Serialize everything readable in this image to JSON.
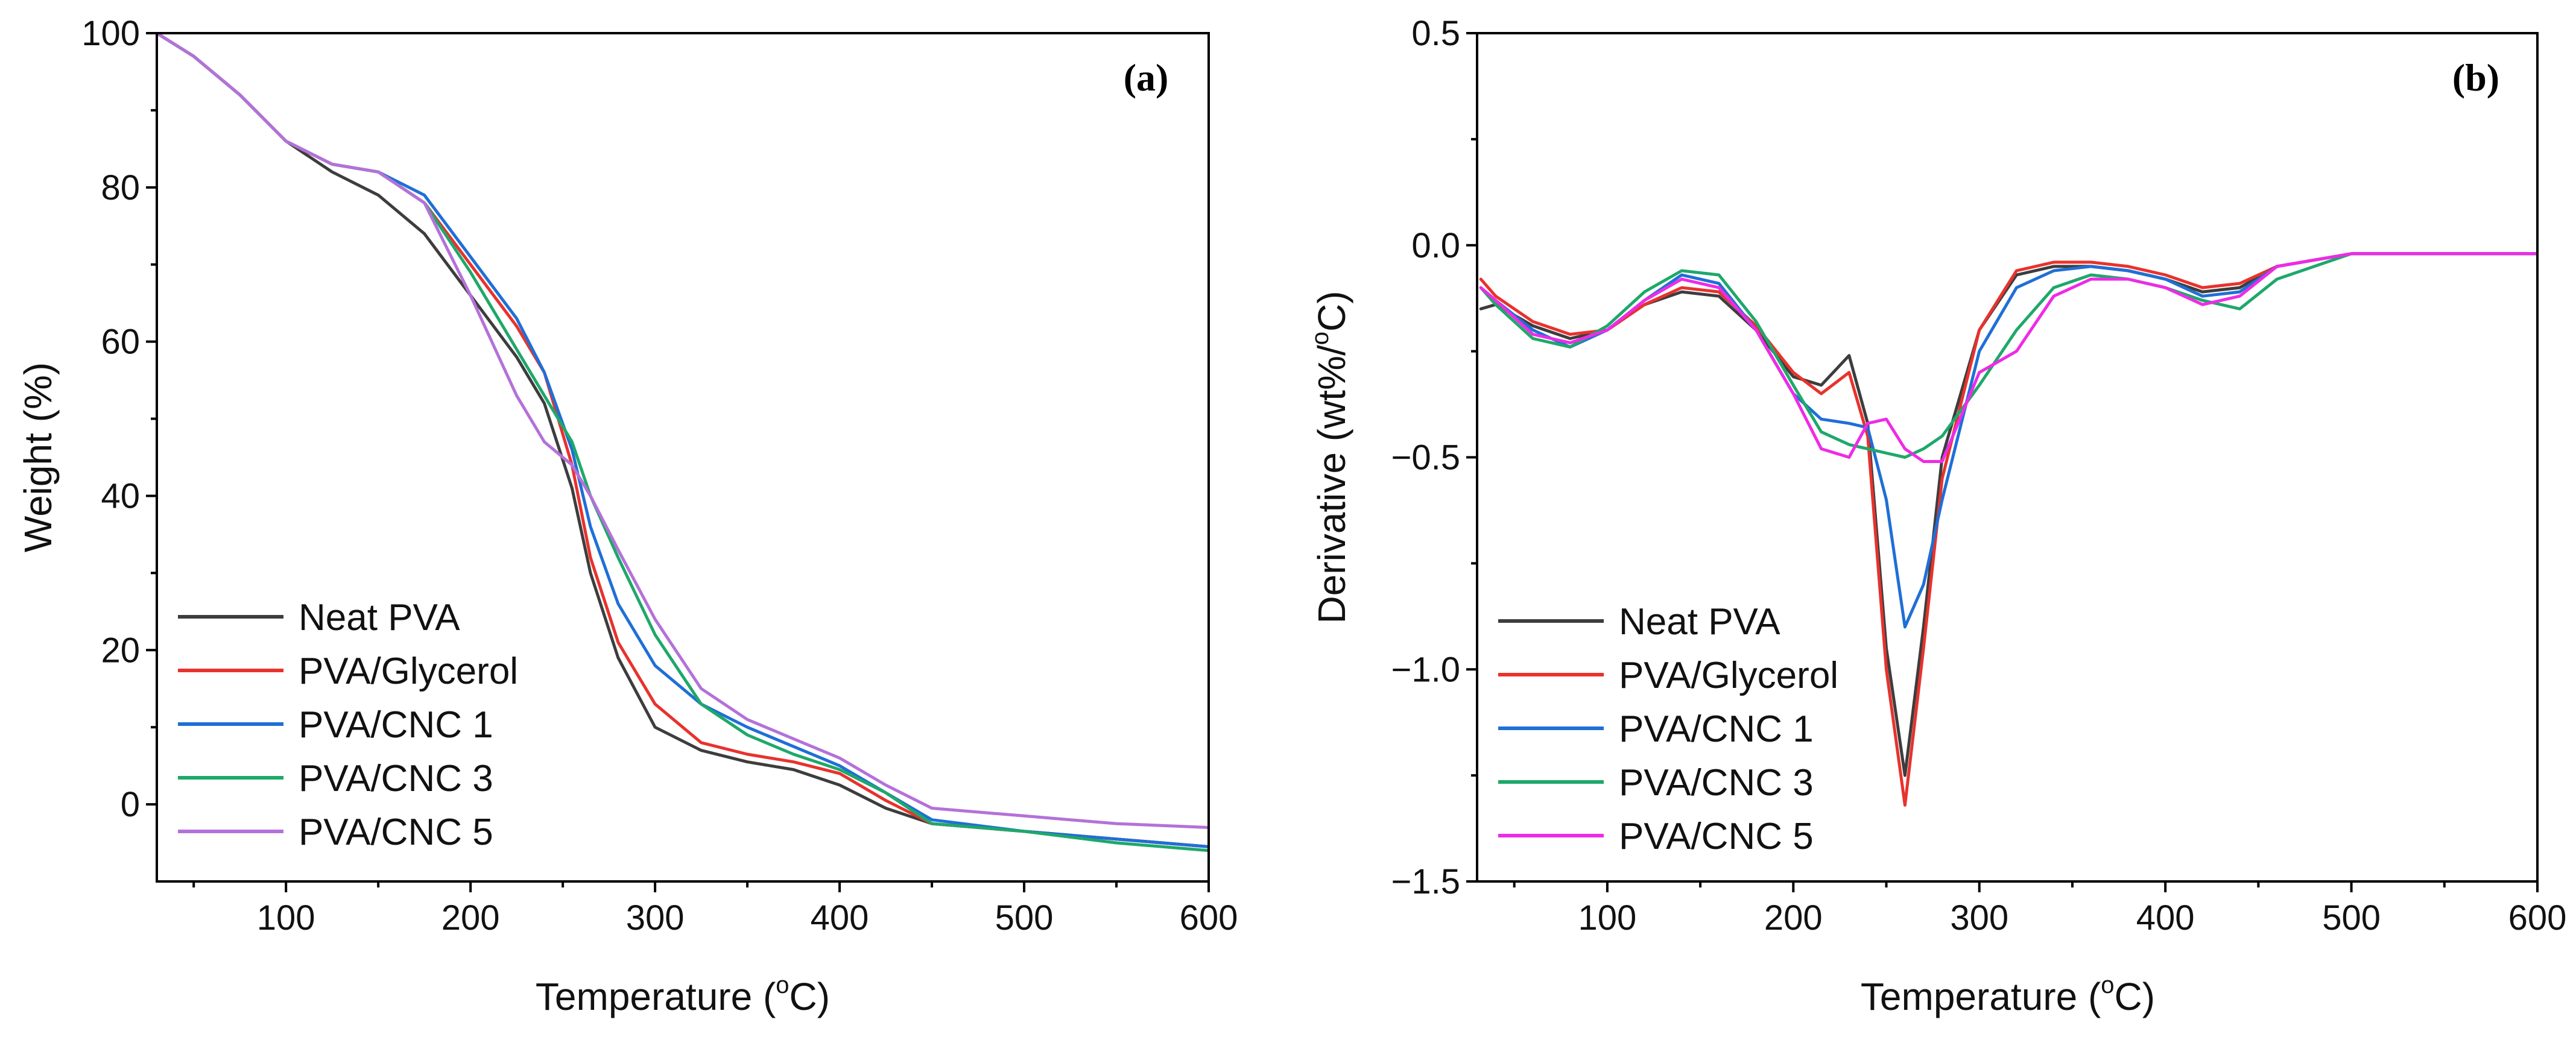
{
  "chart_data": [
    {
      "type": "line",
      "panel": "(a)",
      "title": "",
      "xlabel": "Temperature (",
      "xlabel_sup": "o",
      "xlabel_suffix": "C)",
      "ylabel": "Weight (%)",
      "xlim": [
        30,
        600
      ],
      "ylim": [
        -10,
        100
      ],
      "xticks": [
        100,
        200,
        300,
        400,
        500,
        600
      ],
      "yticks": [
        0,
        20,
        40,
        60,
        80,
        100
      ],
      "legend_position": "bottom-left",
      "x": [
        30,
        50,
        75,
        100,
        125,
        150,
        175,
        200,
        225,
        240,
        255,
        265,
        280,
        300,
        325,
        350,
        375,
        400,
        425,
        450,
        500,
        550,
        600
      ],
      "series": [
        {
          "name": "Neat PVA",
          "color": "#3d3d3d",
          "values": [
            100,
            97,
            92,
            86,
            82,
            79,
            74,
            66,
            58,
            52,
            41,
            30,
            19,
            10,
            7,
            5.5,
            4.5,
            2.5,
            -0.5,
            -2.5,
            -3.5,
            -4.5,
            -5.5
          ]
        },
        {
          "name": "PVA/Glycerol",
          "color": "#e8322d",
          "values": [
            100,
            97,
            92,
            86,
            83,
            82,
            78,
            70,
            62,
            56,
            44,
            32,
            21,
            13,
            8,
            6.5,
            5.5,
            4,
            0.5,
            -2.5,
            -3.5,
            -4.5,
            -5.5
          ]
        },
        {
          "name": "PVA/CNC 1",
          "color": "#1f6fd6",
          "values": [
            100,
            97,
            92,
            86,
            83,
            82,
            79,
            71,
            63,
            56,
            46,
            36,
            26,
            18,
            13,
            10,
            7.5,
            5,
            1.5,
            -2,
            -3.5,
            -4.5,
            -5.5
          ]
        },
        {
          "name": "PVA/CNC 3",
          "color": "#1ea86a",
          "values": [
            100,
            97,
            92,
            86,
            83,
            82,
            78,
            69,
            59,
            53,
            47,
            40,
            32,
            22,
            13,
            9,
            6.5,
            4.5,
            1.5,
            -2.5,
            -3.5,
            -5,
            -6
          ]
        },
        {
          "name": "PVA/CNC 5",
          "color": "#b471d9",
          "values": [
            100,
            97,
            92,
            86,
            83,
            82,
            78,
            66,
            53,
            47,
            44,
            40,
            33,
            24,
            15,
            11,
            8.5,
            6,
            2.5,
            -0.5,
            -1.5,
            -2.5,
            -3
          ]
        }
      ]
    },
    {
      "type": "line",
      "panel": "(b)",
      "title": "",
      "xlabel": "Temperature (",
      "xlabel_sup": "o",
      "xlabel_suffix": "C)",
      "ylabel": "Derivative (wt%/",
      "ylabel_sup": "o",
      "ylabel_suffix": "C)",
      "xlim": [
        30,
        600
      ],
      "ylim": [
        -1.5,
        0.5
      ],
      "xticks": [
        100,
        200,
        300,
        400,
        500,
        600
      ],
      "yticks": [
        -1.5,
        -1.0,
        -0.5,
        0.0,
        0.5
      ],
      "ytick_labels": [
        "−1.5",
        "−1.0",
        "−0.5",
        "0.0",
        "0.5"
      ],
      "legend_position": "bottom-left",
      "x": [
        32,
        40,
        60,
        80,
        100,
        120,
        140,
        160,
        180,
        200,
        215,
        230,
        240,
        250,
        260,
        270,
        280,
        300,
        320,
        340,
        360,
        380,
        400,
        420,
        440,
        460,
        500,
        550,
        600
      ],
      "series": [
        {
          "name": "Neat PVA",
          "color": "#3d3d3d",
          "values": [
            -0.15,
            -0.14,
            -0.19,
            -0.22,
            -0.2,
            -0.14,
            -0.11,
            -0.12,
            -0.2,
            -0.31,
            -0.33,
            -0.26,
            -0.42,
            -0.95,
            -1.25,
            -0.9,
            -0.5,
            -0.2,
            -0.07,
            -0.05,
            -0.05,
            -0.06,
            -0.08,
            -0.11,
            -0.1,
            -0.05,
            -0.02,
            -0.02,
            -0.02
          ]
        },
        {
          "name": "PVA/Glycerol",
          "color": "#e8322d",
          "values": [
            -0.08,
            -0.12,
            -0.18,
            -0.21,
            -0.2,
            -0.14,
            -0.1,
            -0.11,
            -0.19,
            -0.3,
            -0.35,
            -0.3,
            -0.45,
            -1.0,
            -1.32,
            -0.95,
            -0.55,
            -0.2,
            -0.06,
            -0.04,
            -0.04,
            -0.05,
            -0.07,
            -0.1,
            -0.09,
            -0.05,
            -0.02,
            -0.02,
            -0.02
          ]
        },
        {
          "name": "PVA/CNC 1",
          "color": "#1f6fd6",
          "values": [
            -0.1,
            -0.13,
            -0.2,
            -0.24,
            -0.2,
            -0.13,
            -0.07,
            -0.09,
            -0.2,
            -0.35,
            -0.41,
            -0.42,
            -0.43,
            -0.6,
            -0.9,
            -0.8,
            -0.6,
            -0.25,
            -0.1,
            -0.06,
            -0.05,
            -0.06,
            -0.08,
            -0.12,
            -0.11,
            -0.05,
            -0.02,
            -0.02,
            -0.02
          ]
        },
        {
          "name": "PVA/CNC 3",
          "color": "#1ea86a",
          "values": [
            -0.1,
            -0.14,
            -0.22,
            -0.24,
            -0.19,
            -0.11,
            -0.06,
            -0.07,
            -0.18,
            -0.33,
            -0.44,
            -0.47,
            -0.48,
            -0.49,
            -0.5,
            -0.48,
            -0.45,
            -0.33,
            -0.2,
            -0.1,
            -0.07,
            -0.08,
            -0.1,
            -0.13,
            -0.15,
            -0.08,
            -0.02,
            -0.02,
            -0.02
          ]
        },
        {
          "name": "PVA/CNC 5",
          "color": "#ee2be6",
          "values": [
            -0.1,
            -0.13,
            -0.21,
            -0.23,
            -0.2,
            -0.13,
            -0.08,
            -0.1,
            -0.2,
            -0.35,
            -0.48,
            -0.5,
            -0.42,
            -0.41,
            -0.48,
            -0.51,
            -0.51,
            -0.3,
            -0.25,
            -0.12,
            -0.08,
            -0.08,
            -0.1,
            -0.14,
            -0.12,
            -0.05,
            -0.02,
            -0.02,
            -0.02
          ]
        }
      ]
    }
  ]
}
